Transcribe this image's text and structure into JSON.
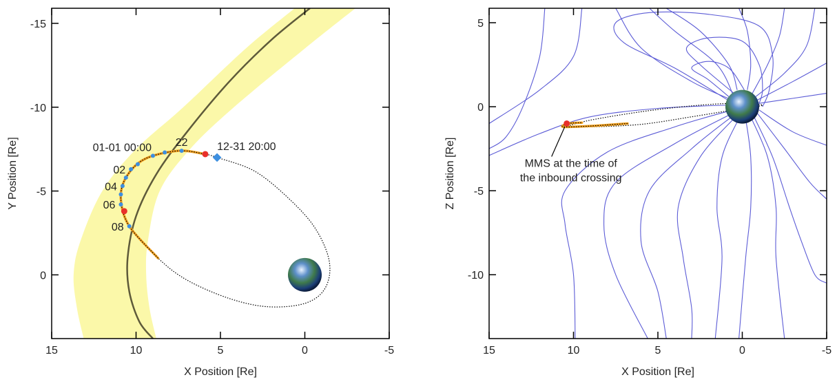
{
  "chart_data": [
    {
      "type": "orbit",
      "xlabel": "X Position [Re]",
      "ylabel": "Y Position [Re]",
      "xlim": [
        15,
        -5
      ],
      "ylim": [
        3.8,
        -15.9
      ],
      "xticks": [
        15,
        10,
        5,
        0,
        -5
      ],
      "yticks": [
        -15,
        -10,
        -5,
        0
      ],
      "magnetopause_band": {
        "color": "#fbf8a9",
        "outer": {
          "x": [
            0.6,
            3.5,
            7.2,
            10,
            12,
            13.3,
            13.7,
            13.5,
            13.1
          ],
          "y": [
            -15.9,
            -13.5,
            -10,
            -7.5,
            -5,
            -2,
            0,
            2,
            3.8
          ]
        },
        "inner": {
          "x": [
            -3,
            0,
            4.2,
            6.8,
            8.6,
            9.3,
            9.4,
            9.2,
            8.8
          ],
          "y": [
            -15.9,
            -13.5,
            -10,
            -7.5,
            -5,
            -2,
            0,
            2,
            3.8
          ]
        }
      },
      "magnetopause": {
        "color": "#5e5a3a",
        "x": [
          -0.3,
          2,
          4.5,
          7,
          8.8,
          10,
          10.5,
          10.4,
          9.8,
          9.0
        ],
        "y": [
          -15.9,
          -14,
          -11.5,
          -8.5,
          -6,
          -3.5,
          -1,
          1,
          2.8,
          3.8
        ]
      },
      "orbit": {
        "color": "#000000",
        "x": [
          5.2,
          3,
          1,
          -0.6,
          -1.45,
          -1.2,
          0,
          2.2,
          4.5,
          7,
          8.7,
          10.4,
          10.9,
          10.6,
          9.5,
          7.5,
          5.9,
          5.2
        ],
        "y": [
          -7.0,
          -6.2,
          -4.6,
          -2.8,
          -0.8,
          0.8,
          1.7,
          1.9,
          1.4,
          0.3,
          -1,
          -2.9,
          -4.5,
          -5.8,
          -6.9,
          -7.4,
          -7.2,
          -7.0
        ]
      },
      "crossing_segment": {
        "color": "#f0a020",
        "x": [
          8.7,
          10.4,
          10.9,
          10.6,
          9.5,
          7.5,
          5.9
        ],
        "y": [
          -1,
          -2.9,
          -4.5,
          -5.8,
          -6.9,
          -7.4,
          -7.2
        ]
      },
      "hourly_points": {
        "color": "#3d8fe0",
        "x": [
          7.3,
          8.3,
          9.0,
          9.9,
          10.3,
          10.6,
          10.8,
          10.9,
          10.9,
          10.4
        ],
        "y": [
          -7.4,
          -7.3,
          -7.1,
          -6.6,
          -6.3,
          -5.8,
          -5.3,
          -4.8,
          -4.2,
          -2.9
        ],
        "labels": [
          "22",
          null,
          "01-01 00:00",
          null,
          "02",
          null,
          "04",
          null,
          "06",
          "08"
        ]
      },
      "crossings": {
        "color": "#e8302a",
        "x": [
          5.9,
          10.7
        ],
        "y": [
          -7.2,
          -3.8
        ]
      },
      "start": {
        "color": "#3d8fe0",
        "x": 5.2,
        "y": -7.0,
        "label": "12-31 20:00"
      },
      "earth": {
        "x": 0,
        "y": 0,
        "r": 1
      }
    },
    {
      "type": "fieldlines",
      "xlabel": "X Position [Re]",
      "ylabel": "Z Position [Re]",
      "xlim": [
        15,
        -5
      ],
      "ylim": [
        -13.8,
        5.86
      ],
      "xticks": [
        15,
        10,
        5,
        0,
        -5
      ],
      "yticks": [
        5,
        0,
        -5,
        -10
      ],
      "field_lines": {
        "color": "#5b5bd6",
        "lines": [
          {
            "x": [
              0.8,
              2,
              3,
              2,
              0.8,
              0,
              -0.3
            ],
            "y": [
              0.6,
              1.6,
              2.3,
              2.7,
              2.3,
              1.2,
              0.6
            ]
          },
          {
            "x": [
              0.5,
              2.5,
              3.3,
              2,
              0,
              -1,
              -1.2,
              -1
            ],
            "y": [
              0.8,
              2.5,
              3.5,
              4.1,
              3.9,
              2.5,
              1,
              0.2
            ]
          },
          {
            "x": [
              0.7,
              4,
              7,
              7.5,
              5.5,
              2,
              -1,
              -1.8,
              -1.6,
              -1.2
            ],
            "y": [
              0.3,
              2.3,
              3.8,
              5,
              5.6,
              5.5,
              4.8,
              3,
              1,
              0
            ]
          },
          {
            "x": [
              0.3,
              0.8,
              2.5,
              4.5
            ],
            "y": [
              1,
              2.5,
              4.5,
              5.86
            ]
          },
          {
            "x": [
              -0.3,
              -0.5,
              -0.3,
              0.2
            ],
            "y": [
              1,
              2.5,
              4.5,
              5.86
            ]
          },
          {
            "x": [
              -0.6,
              -1.5,
              -2.2,
              -2.5
            ],
            "y": [
              0.8,
              2.5,
              4.2,
              5.86
            ]
          },
          {
            "x": [
              -0.8,
              -2.5,
              -3.8,
              -4.3
            ],
            "y": [
              0.6,
              2,
              3.6,
              5.86
            ]
          },
          {
            "x": [
              -0.9,
              -3,
              -5
            ],
            "y": [
              0.4,
              1.5,
              2.6
            ]
          },
          {
            "x": [
              -1,
              -3,
              -5
            ],
            "y": [
              0.2,
              0.5,
              0.8
            ]
          },
          {
            "x": [
              -1,
              -3,
              -5
            ],
            "y": [
              -0.2,
              -1.5,
              -2.3
            ]
          },
          {
            "x": [
              -0.9,
              -2.5,
              -4,
              -5
            ],
            "y": [
              -0.4,
              -2.5,
              -4.5,
              -5.5
            ]
          },
          {
            "x": [
              -0.7,
              -1.8,
              -2.8,
              -3.5,
              -4.3,
              -5
            ],
            "y": [
              -0.6,
              -3,
              -6,
              -8,
              -10,
              -10.5
            ]
          },
          {
            "x": [
              0.6,
              4,
              8,
              10.5,
              10.5,
              10,
              9.9
            ],
            "y": [
              -0.2,
              -1.2,
              -2.7,
              -5,
              -7,
              -10,
              -13.8
            ]
          },
          {
            "x": [
              0.6,
              4,
              7.5,
              8.2,
              7.5,
              5.6
            ],
            "y": [
              -0.4,
              -2.2,
              -4.5,
              -7,
              -10,
              -13.8
            ]
          },
          {
            "x": [
              0.5,
              3,
              5.5,
              6,
              5,
              4.5
            ],
            "y": [
              -0.5,
              -2.5,
              -5,
              -8,
              -11,
              -13.8
            ]
          },
          {
            "x": [
              0.4,
              2.5,
              3.8,
              3.5,
              3,
              3
            ],
            "y": [
              -0.6,
              -3,
              -6,
              -9,
              -12,
              -13.8
            ]
          },
          {
            "x": [
              0.2,
              1.2,
              1.5,
              1.2,
              1.6
            ],
            "y": [
              -0.7,
              -3,
              -6,
              -9,
              -13.8
            ]
          },
          {
            "x": [
              -0.2,
              -0.5,
              -0.5,
              -0.2,
              0.2
            ],
            "y": [
              -0.7,
              -3,
              -6,
              -9,
              -13.8
            ]
          },
          {
            "x": [
              -0.5,
              -1.5,
              -2,
              -2,
              -2.5
            ],
            "y": [
              -0.6,
              -3,
              -6,
              -9,
              -13.8
            ]
          },
          {
            "x": [
              0.8,
              5,
              9,
              12,
              15
            ],
            "y": [
              0.1,
              -0.1,
              -0.6,
              -1.6,
              -2.9
            ]
          },
          {
            "x": [
              11.7,
              12,
              13,
              14,
              15
            ],
            "y": [
              5.86,
              3,
              0,
              -1.8,
              -2.5
            ]
          },
          {
            "x": [
              9.5,
              10,
              12,
              15
            ],
            "y": [
              5.86,
              3,
              1,
              -1
            ]
          },
          {
            "x": [
              0.6,
              3,
              6,
              7.5
            ],
            "y": [
              0.4,
              1.5,
              3.5,
              5.86
            ]
          },
          {
            "x": [
              0.5,
              1.5,
              4,
              5.5
            ],
            "y": [
              0.6,
              2.5,
              4.5,
              5.86
            ]
          }
        ]
      },
      "orbit": {
        "color": "#000000",
        "x": [
          10.5,
          9,
          6,
          3,
          0,
          -1.2,
          0.5,
          3,
          6,
          9,
          10.5
        ],
        "y": [
          -1.2,
          -1.2,
          -1.05,
          -0.6,
          -0.1,
          0.1,
          0.2,
          0.05,
          -0.3,
          -0.8,
          -1.2
        ]
      },
      "crossing_segment": {
        "color": "#f0a020",
        "x": [
          6.8,
          9,
          10.6,
          10.3,
          9.5
        ],
        "y": [
          -1.0,
          -1.15,
          -1.2,
          -1.0,
          -0.95
        ]
      },
      "crossings": {
        "color": "#e8302a",
        "x": [
          10.4
        ],
        "y": [
          -1.0
        ]
      },
      "annotation": {
        "lines": [
          "MMS at the time of",
          "the inbound crossing"
        ]
      },
      "earth": {
        "x": 0,
        "y": 0,
        "r": 1
      }
    }
  ]
}
